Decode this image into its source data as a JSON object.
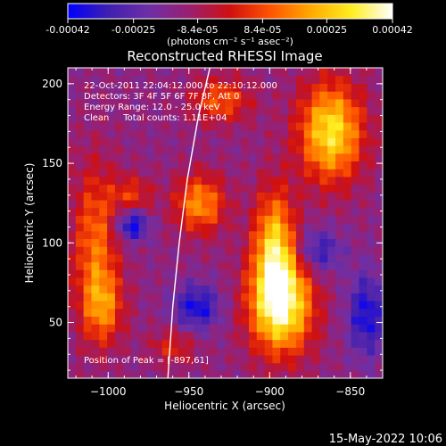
{
  "colorbar": {
    "tick_labels": [
      "-0.00042",
      "-0.00025",
      "-8.4e-05",
      "8.4e-05",
      "0.00025",
      "0.00042"
    ],
    "tick_values": [
      -0.00042,
      -0.00025,
      -8.4e-05,
      8.4e-05,
      0.00025,
      0.00042
    ],
    "range": [
      -0.00042,
      0.00042
    ],
    "unit_label": "(photons cm⁻² s⁻¹ asec⁻²)",
    "colors": [
      "#0000ff",
      "#3f1fb0",
      "#6e2fa6",
      "#9a1f70",
      "#d01010",
      "#ff5500",
      "#ffaa00",
      "#ffee22",
      "#ffffff"
    ]
  },
  "chart_data": {
    "type": "heatmap",
    "title": "Reconstructed RHESSI Image",
    "xlabel": "Heliocentric X (arcsec)",
    "ylabel": "Heliocentric Y (arcsec)",
    "xlim": [
      -1025,
      -830
    ],
    "ylim": [
      15,
      210
    ],
    "x_ticks": [
      -1000,
      -950,
      -900,
      -850
    ],
    "y_ticks": [
      50,
      100,
      150,
      200
    ],
    "x_tick_labels": [
      "−1000",
      "−950",
      "−900",
      "−850"
    ],
    "y_tick_labels": [
      "50",
      "100",
      "150",
      "200"
    ],
    "grid": false,
    "annotations": [
      "22-Oct-2011 22:04:12.000 to 22:10:12.000",
      "Detectors: 3F 4F 5F 6F 7F 8F, Att 0",
      "Energy Range: 12.0 - 25.0 keV",
      "Clean     Total counts: 1.11E+04"
    ],
    "peak_label": "Position of Peak = [-897,61]",
    "peak": {
      "x": -897,
      "y": 61
    },
    "limb_curve": [
      [
        -963,
        15
      ],
      [
        -960,
        60
      ],
      [
        -956,
        100
      ],
      [
        -951,
        140
      ],
      [
        -944,
        180
      ],
      [
        -937,
        210
      ]
    ],
    "hot_regions": [
      {
        "x": -893,
        "y": 62,
        "sx": 14,
        "sy": 22,
        "amp": 1.0
      },
      {
        "x": -897,
        "y": 100,
        "sx": 9,
        "sy": 25,
        "amp": 0.7
      },
      {
        "x": -862,
        "y": 170,
        "sx": 14,
        "sy": 22,
        "amp": 0.85
      },
      {
        "x": -943,
        "y": 125,
        "sx": 11,
        "sy": 13,
        "amp": 0.6
      },
      {
        "x": -1008,
        "y": 100,
        "sx": 10,
        "sy": 35,
        "amp": 0.5
      },
      {
        "x": -1003,
        "y": 60,
        "sx": 9,
        "sy": 16,
        "amp": 0.45
      },
      {
        "x": -930,
        "y": 190,
        "sx": 13,
        "sy": 10,
        "amp": 0.45
      },
      {
        "x": -985,
        "y": 130,
        "sx": 9,
        "sy": 9,
        "amp": 0.35
      },
      {
        "x": -960,
        "y": 35,
        "sx": 10,
        "sy": 8,
        "amp": 0.3
      }
    ],
    "cold_regions": [
      {
        "x": -985,
        "y": 112,
        "sx": 7,
        "sy": 7,
        "amp": 0.35
      },
      {
        "x": -945,
        "y": 60,
        "sx": 10,
        "sy": 10,
        "amp": 0.3
      },
      {
        "x": -840,
        "y": 55,
        "sx": 8,
        "sy": 18,
        "amp": 0.3
      },
      {
        "x": -870,
        "y": 95,
        "sx": 10,
        "sy": 10,
        "amp": 0.25
      }
    ]
  },
  "footer": {
    "date_stamp": "15-May-2022 10:06"
  }
}
